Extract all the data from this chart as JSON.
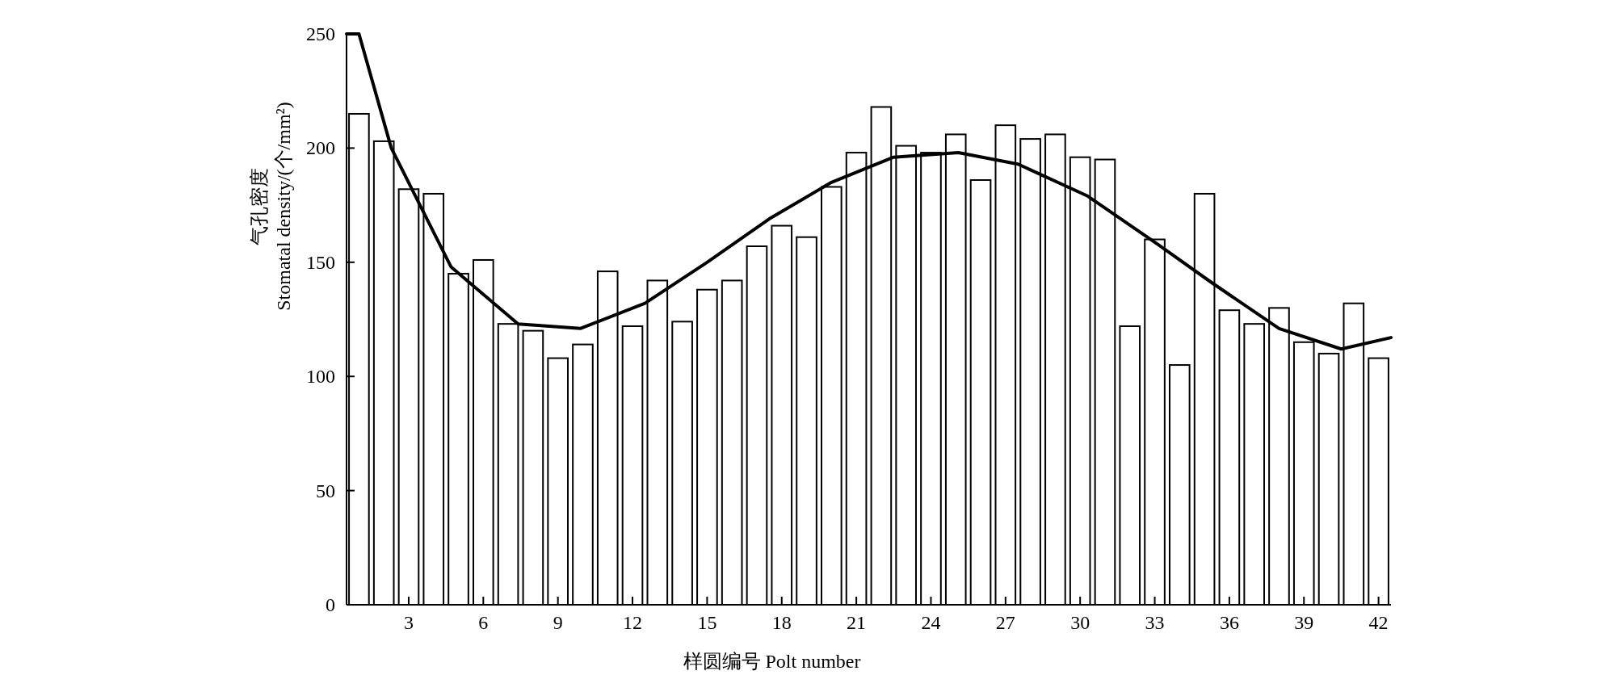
{
  "chart_data": {
    "type": "bar",
    "xlabel": "样圆编号 Polt number",
    "ylabel": "气孔密度\nStomatal density/(个/mm²)",
    "x": [
      1,
      2,
      3,
      4,
      5,
      6,
      7,
      8,
      9,
      10,
      11,
      12,
      13,
      14,
      15,
      16,
      17,
      18,
      19,
      20,
      21,
      22,
      23,
      24,
      25,
      26,
      27,
      28,
      29,
      30,
      31,
      32,
      33,
      34,
      35,
      36,
      37,
      38,
      39,
      40,
      41,
      42
    ],
    "xlim": [
      0.5,
      42.5
    ],
    "xticks": [
      3,
      6,
      9,
      12,
      15,
      18,
      21,
      24,
      27,
      30,
      33,
      36,
      39,
      42
    ],
    "ylim": [
      0,
      250
    ],
    "yticks": [
      0,
      50,
      100,
      150,
      200,
      250
    ],
    "grid": false,
    "series": [
      {
        "color": "#ffffff",
        "values": [
          215,
          203,
          182,
          180,
          145,
          151,
          123,
          120,
          108,
          114,
          146,
          122,
          142,
          124,
          138,
          142,
          157,
          166,
          161,
          183,
          198,
          218,
          201,
          198,
          206,
          186,
          210,
          204,
          206,
          196,
          195,
          122,
          160,
          105,
          180,
          129,
          123,
          130,
          115,
          110,
          132,
          108
        ]
      },
      {
        "type": "line",
        "color": "#000000",
        "line_style": "solid",
        "marker": "none",
        "x": [
          0.5,
          1,
          2.3,
          4.7,
          7.4,
          9.9,
          12.5,
          15,
          17.5,
          20,
          22.5,
          25.1,
          27.5,
          30.3,
          33.1,
          35.3,
          38,
          40.5,
          42.5
        ],
        "values": [
          250,
          250,
          200,
          148,
          123,
          121,
          132,
          150,
          169,
          185,
          196,
          198,
          193,
          179,
          158,
          141,
          121,
          112,
          117
        ]
      }
    ]
  }
}
